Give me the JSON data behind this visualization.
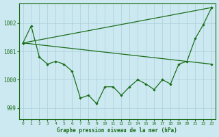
{
  "title": "Graphe pression niveau de la mer (hPa)",
  "background_color": "#cce8f0",
  "grid_color": "#aacfda",
  "line_color": "#1a6e1a",
  "xlim": [
    -0.5,
    23.5
  ],
  "ylim": [
    998.6,
    1002.7
  ],
  "yticks": [
    999,
    1000,
    1001,
    1002
  ],
  "xticks": [
    0,
    1,
    2,
    3,
    4,
    5,
    6,
    7,
    8,
    9,
    10,
    11,
    12,
    13,
    14,
    15,
    16,
    17,
    18,
    19,
    20,
    21,
    22,
    23
  ],
  "series1_x": [
    0,
    1,
    2,
    3,
    4,
    5,
    6,
    7,
    8,
    9,
    10,
    11,
    12,
    13,
    14,
    15,
    16,
    17,
    18,
    19,
    20,
    21,
    22,
    23
  ],
  "series1_y": [
    1001.3,
    1001.9,
    1000.8,
    1000.55,
    1000.65,
    1000.55,
    1000.3,
    999.35,
    999.45,
    999.15,
    999.75,
    999.75,
    999.45,
    999.75,
    1000.0,
    999.85,
    999.65,
    1000.0,
    999.85,
    1000.55,
    1000.65,
    1001.45,
    1001.95,
    1002.55
  ],
  "series2_x": [
    0,
    23
  ],
  "series2_y": [
    1001.3,
    1000.55
  ],
  "series3_x": [
    0,
    23
  ],
  "series3_y": [
    1001.3,
    1002.55
  ]
}
